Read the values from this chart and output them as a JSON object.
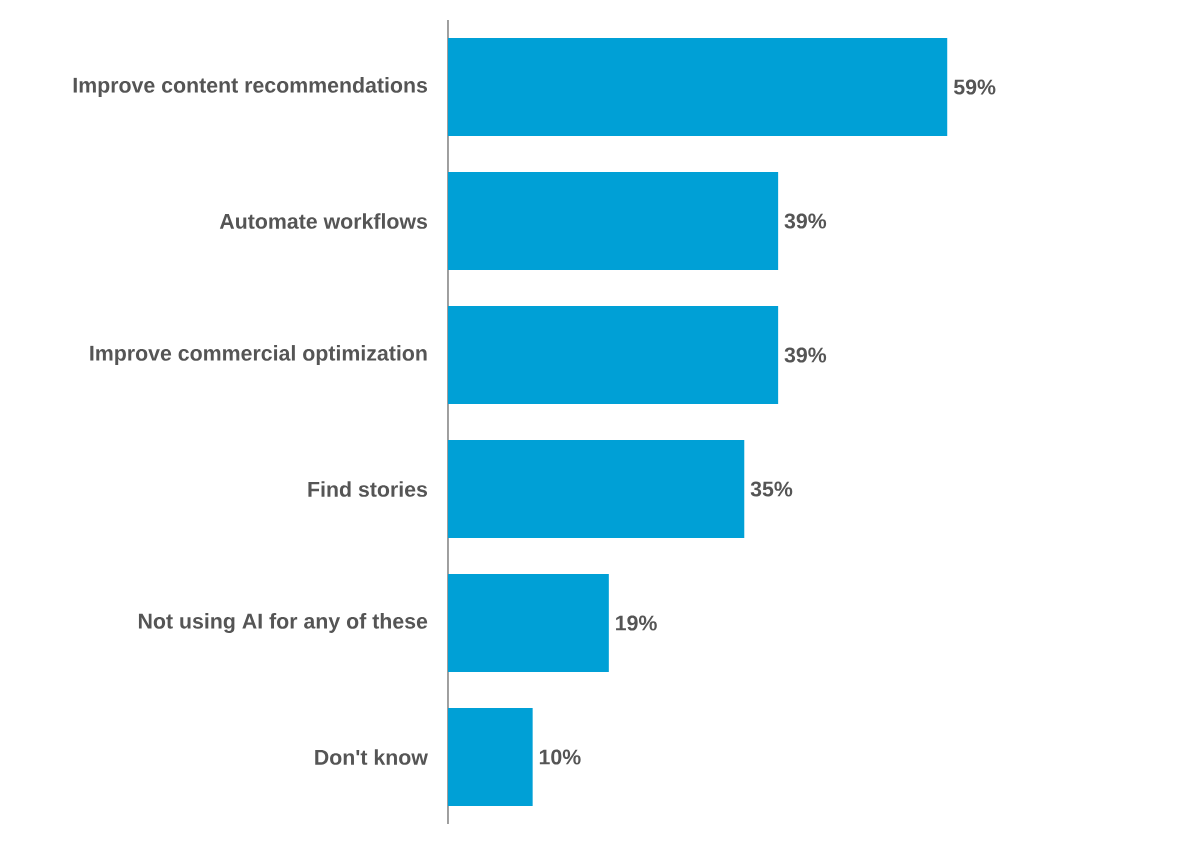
{
  "chart_data": {
    "type": "bar",
    "orientation": "horizontal",
    "categories": [
      "Improve content recommendations",
      "Automate workflows",
      "Improve commercial optimization",
      "Find stories",
      "Not using AI for any of these",
      "Don't know"
    ],
    "values": [
      59,
      39,
      39,
      35,
      19,
      10
    ],
    "value_labels": [
      "59%",
      "39%",
      "39%",
      "35%",
      "19%",
      "10%"
    ],
    "color": "#00a0d6"
  }
}
